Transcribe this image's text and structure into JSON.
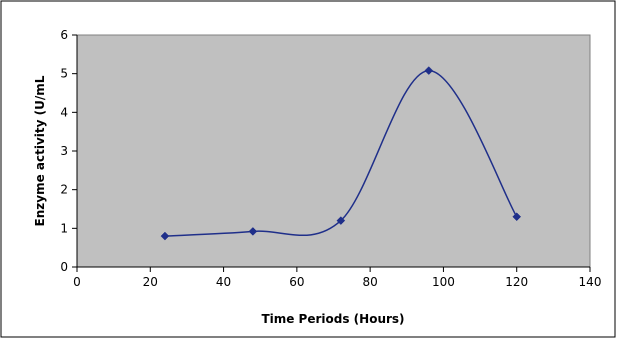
{
  "chart_data": {
    "type": "line",
    "title": "",
    "xlabel": "Time Periods (Hours)",
    "ylabel": "Enzyme activity (U/mL",
    "xlim": [
      0,
      140
    ],
    "ylim": [
      0,
      6
    ],
    "x_ticks": [
      0,
      20,
      40,
      60,
      80,
      100,
      120,
      140
    ],
    "y_ticks": [
      0,
      1,
      2,
      3,
      4,
      5,
      6
    ],
    "grid": false,
    "legend": "none",
    "smoothed": true,
    "series": [
      {
        "x": [
          24,
          48,
          72,
          96,
          120
        ],
        "y": [
          0.8,
          0.92,
          1.2,
          5.08,
          1.3
        ],
        "marker": "diamond"
      }
    ],
    "colors": {
      "plot_background": "#c0c0c0",
      "line": "#1f2f8a",
      "marker": "#1f2f8a",
      "axis": "#000000"
    }
  }
}
